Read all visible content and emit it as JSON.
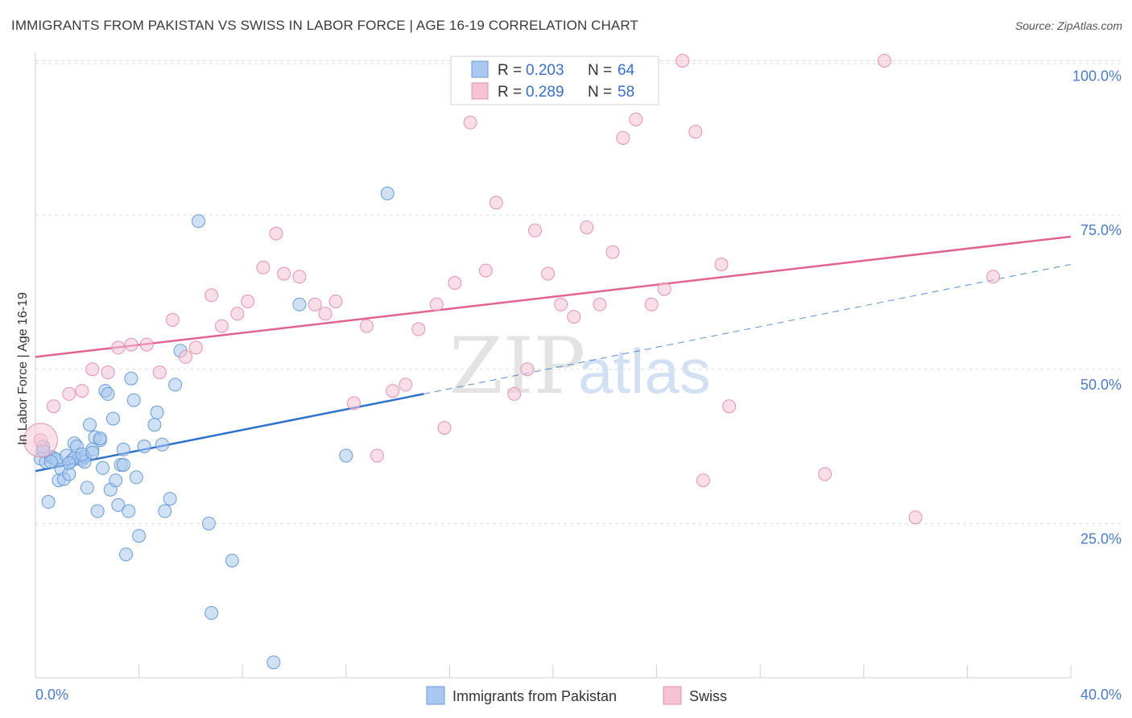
{
  "title": "IMMIGRANTS FROM PAKISTAN VS SWISS IN LABOR FORCE | AGE 16-19 CORRELATION CHART",
  "source": "Source: ZipAtlas.com",
  "watermark": {
    "zip": "ZIP",
    "atlas": "atlas"
  },
  "colors": {
    "blue_fill": "#a9c8ef",
    "blue_stroke": "#6a9bd8",
    "blue_line": "#2e72cc",
    "pink_fill": "#f6c3d3",
    "pink_stroke": "#e394ad",
    "pink_line": "#e0648e",
    "axis_text": "#4b7bc8",
    "grid": "#dddddd"
  },
  "legend_top": {
    "rows": [
      {
        "r_label": "R = ",
        "r_value": "0.203",
        "n_label": "N = ",
        "n_value": "64",
        "series": "blue"
      },
      {
        "r_label": "R = ",
        "r_value": "0.289",
        "n_label": "N = ",
        "n_value": "58",
        "series": "pink"
      }
    ]
  },
  "legend_bottom": [
    {
      "label": "Immigrants from Pakistan",
      "series": "blue"
    },
    {
      "label": "Swiss",
      "series": "pink"
    }
  ],
  "chart_data": {
    "type": "scatter",
    "title": "IMMIGRANTS FROM PAKISTAN VS SWISS IN LABOR FORCE | AGE 16-19 CORRELATION CHART",
    "xlabel": "",
    "ylabel": "In Labor Force | Age 16-19",
    "xlim": [
      0,
      40
    ],
    "ylim": [
      0,
      100
    ],
    "x_tick_labels": [
      "0.0%",
      "40.0%"
    ],
    "y_ticks": [
      25,
      50,
      75,
      100
    ],
    "y_tick_labels": [
      "25.0%",
      "50.0%",
      "75.0%",
      "100.0%"
    ],
    "series": [
      {
        "name": "Immigrants from Pakistan",
        "color": "blue",
        "R": 0.203,
        "N": 64,
        "trend": {
          "x0": 0,
          "y0": 33.5,
          "x1": 15.0,
          "y1": 46.0,
          "dash_x1": 40,
          "dash_y1": 67.0
        },
        "points": [
          [
            0.2,
            35.5
          ],
          [
            0.3,
            37.5
          ],
          [
            0.4,
            35.0
          ],
          [
            0.5,
            28.5
          ],
          [
            0.6,
            35.8
          ],
          [
            0.7,
            35.6
          ],
          [
            0.8,
            35.4
          ],
          [
            0.9,
            32.0
          ],
          [
            1.0,
            33.8
          ],
          [
            1.1,
            32.2
          ],
          [
            1.2,
            36.0
          ],
          [
            1.3,
            33.0
          ],
          [
            1.4,
            35.2
          ],
          [
            1.5,
            38.0
          ],
          [
            1.6,
            37.5
          ],
          [
            1.7,
            35.5
          ],
          [
            1.8,
            35.3
          ],
          [
            1.9,
            35.8
          ],
          [
            2.0,
            30.8
          ],
          [
            2.1,
            41.0
          ],
          [
            2.2,
            37.0
          ],
          [
            2.3,
            39.0
          ],
          [
            2.4,
            27.0
          ],
          [
            2.5,
            38.5
          ],
          [
            2.6,
            34.0
          ],
          [
            2.7,
            46.5
          ],
          [
            2.8,
            46.0
          ],
          [
            2.9,
            30.5
          ],
          [
            3.0,
            42.0
          ],
          [
            3.1,
            32.0
          ],
          [
            3.2,
            28.0
          ],
          [
            3.3,
            34.5
          ],
          [
            3.4,
            34.5
          ],
          [
            3.5,
            20.0
          ],
          [
            3.6,
            27.0
          ],
          [
            3.7,
            48.5
          ],
          [
            3.8,
            45.0
          ],
          [
            3.9,
            32.5
          ],
          [
            4.0,
            23.0
          ],
          [
            4.2,
            37.5
          ],
          [
            4.6,
            41.0
          ],
          [
            4.7,
            43.0
          ],
          [
            4.9,
            37.8
          ],
          [
            5.0,
            27.0
          ],
          [
            5.2,
            29.0
          ],
          [
            5.4,
            47.5
          ],
          [
            5.6,
            53.0
          ],
          [
            6.3,
            74.0
          ],
          [
            6.7,
            25.0
          ],
          [
            6.8,
            10.5
          ],
          [
            7.6,
            19.0
          ],
          [
            9.2,
            2.5
          ],
          [
            10.2,
            60.5
          ],
          [
            12.0,
            36.0
          ],
          [
            13.6,
            78.5
          ],
          [
            0.3,
            36.8
          ],
          [
            1.5,
            35.6
          ],
          [
            1.9,
            35.0
          ],
          [
            2.5,
            38.8
          ],
          [
            0.6,
            35.0
          ],
          [
            1.8,
            36.2
          ],
          [
            2.2,
            36.5
          ],
          [
            3.4,
            37.0
          ],
          [
            1.3,
            34.8
          ]
        ]
      },
      {
        "name": "Swiss",
        "color": "pink",
        "R": 0.289,
        "N": 58,
        "trend": {
          "x0": 0,
          "y0": 52.0,
          "x1": 40,
          "y1": 71.5
        },
        "points": [
          [
            0.2,
            38.5
          ],
          [
            0.7,
            44.0
          ],
          [
            1.3,
            46.0
          ],
          [
            1.8,
            46.5
          ],
          [
            2.2,
            50.0
          ],
          [
            2.8,
            49.5
          ],
          [
            3.2,
            53.5
          ],
          [
            3.7,
            54.0
          ],
          [
            4.3,
            54.0
          ],
          [
            4.8,
            49.5
          ],
          [
            5.3,
            58.0
          ],
          [
            5.8,
            52.0
          ],
          [
            6.2,
            53.5
          ],
          [
            6.8,
            62.0
          ],
          [
            7.2,
            57.0
          ],
          [
            7.8,
            59.0
          ],
          [
            8.2,
            61.0
          ],
          [
            8.8,
            66.5
          ],
          [
            9.3,
            72.0
          ],
          [
            9.6,
            65.5
          ],
          [
            10.2,
            65.0
          ],
          [
            10.8,
            60.5
          ],
          [
            11.2,
            59.0
          ],
          [
            11.6,
            61.0
          ],
          [
            12.3,
            44.5
          ],
          [
            12.8,
            57.0
          ],
          [
            13.2,
            36.0
          ],
          [
            13.8,
            46.5
          ],
          [
            14.3,
            47.5
          ],
          [
            14.8,
            56.5
          ],
          [
            15.5,
            60.5
          ],
          [
            15.8,
            40.5
          ],
          [
            16.2,
            64.0
          ],
          [
            16.8,
            90.0
          ],
          [
            17.4,
            66.0
          ],
          [
            17.8,
            77.0
          ],
          [
            18.5,
            46.0
          ],
          [
            19.0,
            50.0
          ],
          [
            19.3,
            72.5
          ],
          [
            19.8,
            65.5
          ],
          [
            20.3,
            60.5
          ],
          [
            20.8,
            58.5
          ],
          [
            21.3,
            73.0
          ],
          [
            21.8,
            60.5
          ],
          [
            22.3,
            69.0
          ],
          [
            22.7,
            87.5
          ],
          [
            23.2,
            90.5
          ],
          [
            23.8,
            60.5
          ],
          [
            24.3,
            63.0
          ],
          [
            25.0,
            100.0
          ],
          [
            25.5,
            88.5
          ],
          [
            25.8,
            32.0
          ],
          [
            26.5,
            67.0
          ],
          [
            26.8,
            44.0
          ],
          [
            30.5,
            33.0
          ],
          [
            32.8,
            100.0
          ],
          [
            34.0,
            26.0
          ],
          [
            37.0,
            65.0
          ]
        ]
      }
    ]
  }
}
